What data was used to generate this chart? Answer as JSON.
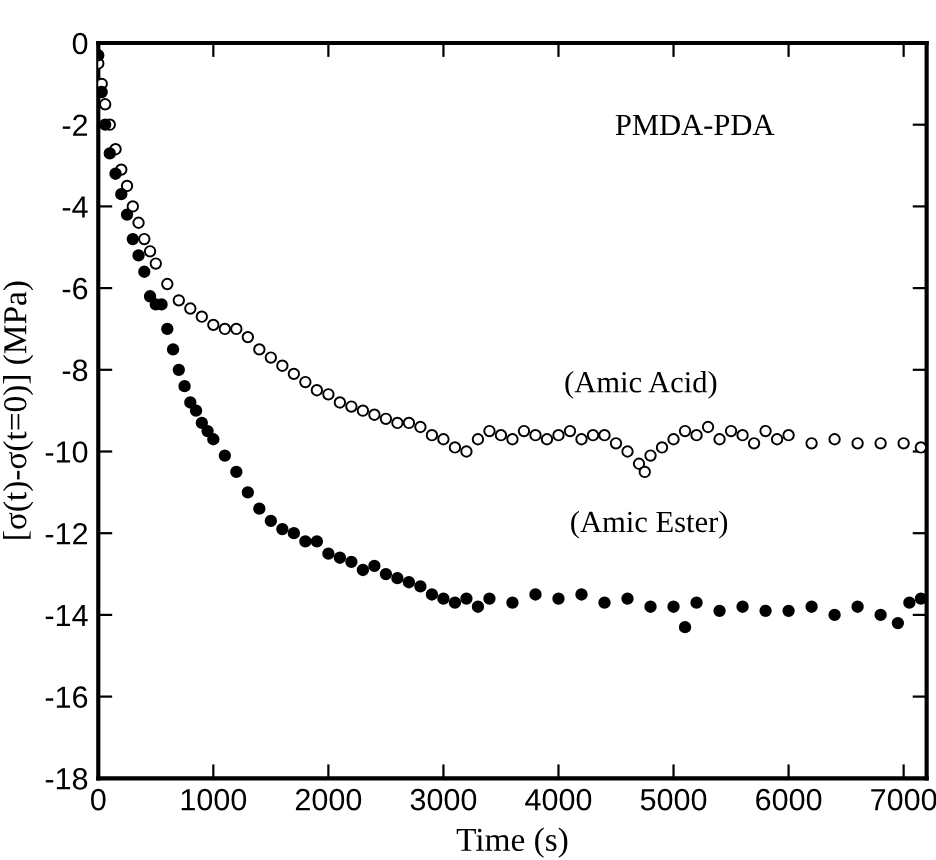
{
  "chart_data": {
    "type": "scatter",
    "xlabel": "Time (s)",
    "ylabel": "[σ(t)-σ(t=0)] (MPa)",
    "xlim": [
      0,
      7200
    ],
    "ylim": [
      -18,
      0
    ],
    "xticks": [
      0,
      1000,
      2000,
      3000,
      4000,
      5000,
      6000,
      7000
    ],
    "yticks": [
      -18,
      -16,
      -14,
      -12,
      -10,
      -8,
      -6,
      -4,
      -2,
      0
    ],
    "marker": "circle",
    "grid": false,
    "annotations": [
      "PMDA-PDA",
      "(Amic Acid)",
      "(Amic Ester)"
    ],
    "series": [
      {
        "color": "#ffffff",
        "x": [
          0,
          30,
          60,
          100,
          150,
          200,
          250,
          300,
          350,
          400,
          450,
          500,
          600,
          700,
          800,
          900,
          1000,
          1100,
          1200,
          1300,
          1400,
          1500,
          1600,
          1700,
          1800,
          1900,
          2000,
          2100,
          2200,
          2300,
          2400,
          2500,
          2600,
          2700,
          2800,
          2900,
          3000,
          3100,
          3200,
          3300,
          3400,
          3500,
          3600,
          3700,
          3800,
          3900,
          4000,
          4100,
          4200,
          4300,
          4400,
          4500,
          4600,
          4700,
          4750,
          4800,
          4900,
          5000,
          5100,
          5200,
          5300,
          5400,
          5500,
          5600,
          5700,
          5800,
          5900,
          6000,
          6200,
          6400,
          6600,
          6800,
          7000,
          7150
        ],
        "values": [
          -0.5,
          -1.0,
          -1.5,
          -2.0,
          -2.6,
          -3.1,
          -3.5,
          -4.0,
          -4.4,
          -4.8,
          -5.1,
          -5.4,
          -5.9,
          -6.3,
          -6.5,
          -6.7,
          -6.9,
          -7.0,
          -7.0,
          -7.2,
          -7.5,
          -7.7,
          -7.9,
          -8.1,
          -8.3,
          -8.5,
          -8.6,
          -8.8,
          -8.9,
          -9.0,
          -9.1,
          -9.2,
          -9.3,
          -9.3,
          -9.4,
          -9.6,
          -9.7,
          -9.9,
          -10.0,
          -9.7,
          -9.5,
          -9.6,
          -9.7,
          -9.5,
          -9.6,
          -9.7,
          -9.6,
          -9.5,
          -9.7,
          -9.6,
          -9.6,
          -9.8,
          -10.0,
          -10.3,
          -10.5,
          -10.1,
          -9.9,
          -9.7,
          -9.5,
          -9.6,
          -9.4,
          -9.7,
          -9.5,
          -9.6,
          -9.8,
          -9.5,
          -9.7,
          -9.6,
          -9.8,
          -9.7,
          -9.8,
          -9.8,
          -9.8,
          -9.9
        ]
      },
      {
        "color": "#000000",
        "x": [
          0,
          30,
          60,
          100,
          150,
          200,
          250,
          300,
          350,
          400,
          450,
          500,
          550,
          600,
          650,
          700,
          750,
          800,
          850,
          900,
          950,
          1000,
          1100,
          1200,
          1300,
          1400,
          1500,
          1600,
          1700,
          1800,
          1900,
          2000,
          2100,
          2200,
          2300,
          2400,
          2500,
          2600,
          2700,
          2800,
          2900,
          3000,
          3100,
          3200,
          3300,
          3400,
          3600,
          3800,
          4000,
          4200,
          4400,
          4600,
          4800,
          5000,
          5100,
          5200,
          5400,
          5600,
          5800,
          6000,
          6200,
          6400,
          6600,
          6800,
          6950,
          7050,
          7150
        ],
        "values": [
          -0.3,
          -1.2,
          -2.0,
          -2.7,
          -3.2,
          -3.7,
          -4.2,
          -4.8,
          -5.2,
          -5.6,
          -6.2,
          -6.4,
          -6.4,
          -7.0,
          -7.5,
          -8.0,
          -8.4,
          -8.8,
          -9.0,
          -9.3,
          -9.5,
          -9.7,
          -10.1,
          -10.5,
          -11.0,
          -11.4,
          -11.7,
          -11.9,
          -12.0,
          -12.2,
          -12.2,
          -12.5,
          -12.6,
          -12.7,
          -12.9,
          -12.8,
          -13.0,
          -13.1,
          -13.2,
          -13.3,
          -13.5,
          -13.6,
          -13.7,
          -13.6,
          -13.8,
          -13.6,
          -13.7,
          -13.5,
          -13.6,
          -13.5,
          -13.7,
          -13.6,
          -13.8,
          -13.8,
          -14.3,
          -13.7,
          -13.9,
          -13.8,
          -13.9,
          -13.9,
          -13.8,
          -14.0,
          -13.8,
          -14.0,
          -14.2,
          -13.7,
          -13.6
        ]
      }
    ]
  }
}
